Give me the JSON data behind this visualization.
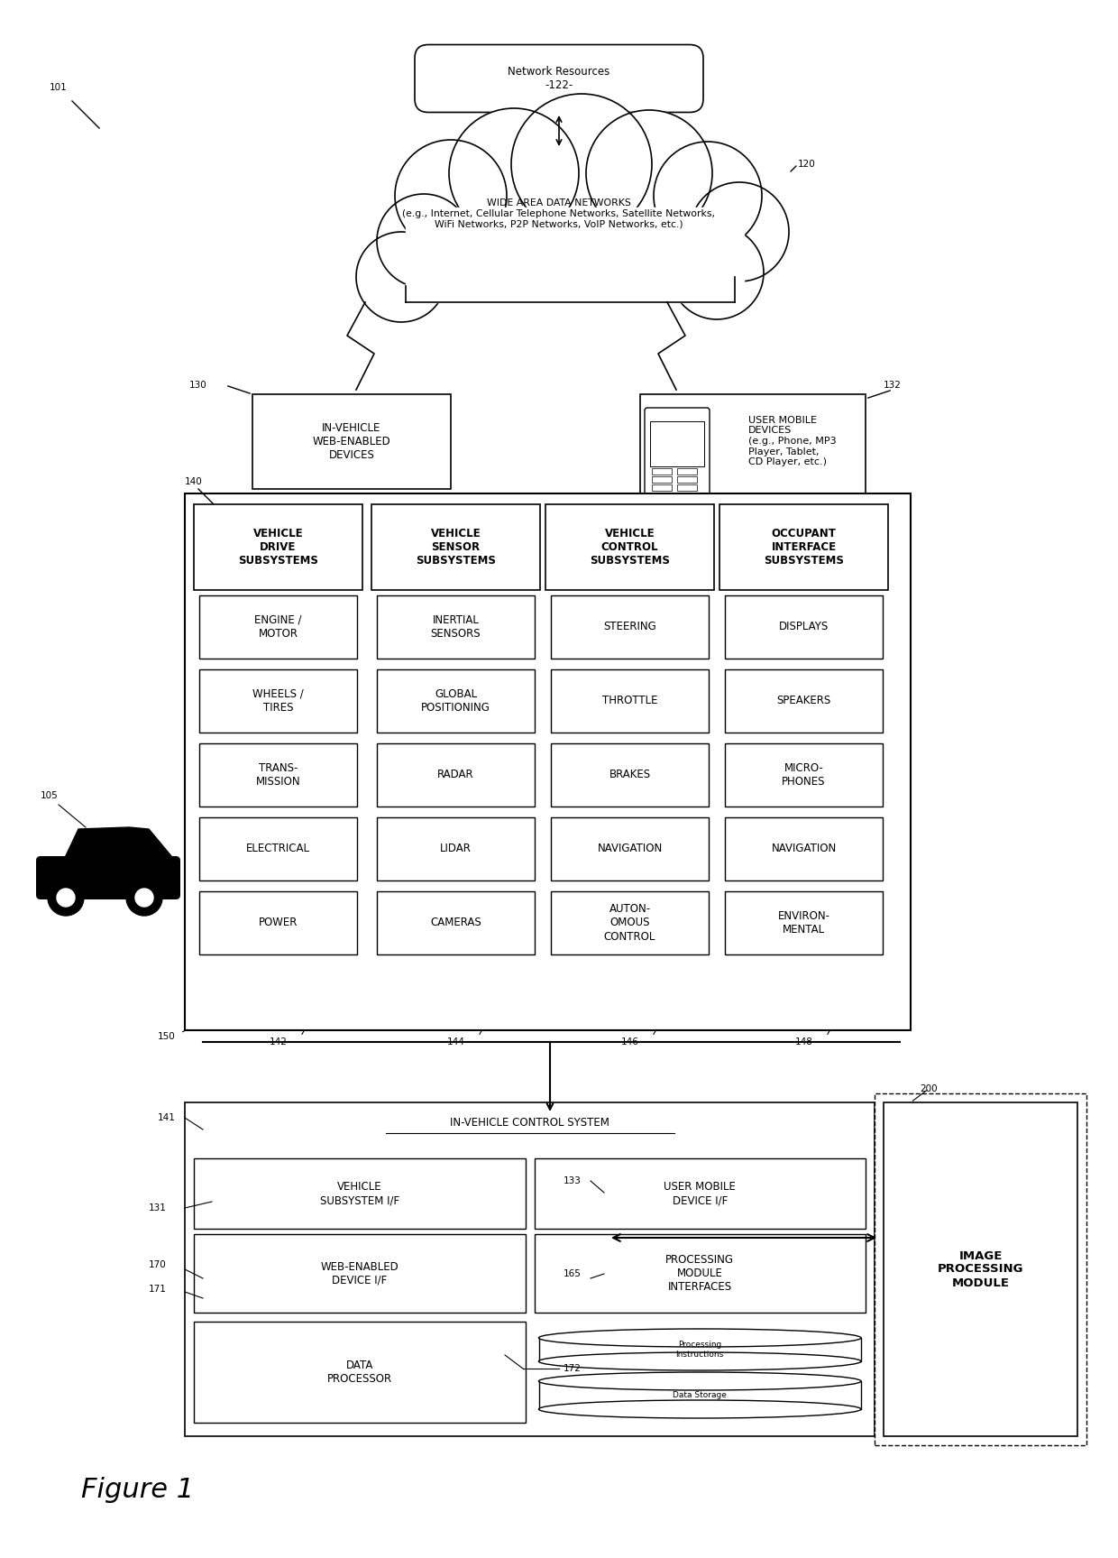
{
  "bg_color": "#ffffff",
  "line_color": "#000000",
  "fig_label": "Figure 1",
  "network_resources_text": "Network Resources\n-122-",
  "wadn_text": "WIDE AREA DATA NETWORKS\n(e.g., Internet, Cellular Telephone Networks, Satellite Networks,\nWiFi Networks, P2P Networks, VoIP Networks, etc.)",
  "label_101": "101",
  "label_120": "120",
  "label_130": "130",
  "label_132": "132",
  "label_140": "140",
  "label_105": "105",
  "label_141": "141",
  "label_131": "131",
  "label_150": "150",
  "label_142": "142",
  "label_144": "144",
  "label_146": "146",
  "label_148": "148",
  "label_133": "133",
  "label_165": "165",
  "label_170": "170",
  "label_171": "171",
  "label_172": "172",
  "label_200": "200",
  "invehicle_web_text": "IN-VEHICLE\nWEB-ENABLED\nDEVICES",
  "user_mobile_text": "USER MOBILE\nDEVICES\n(e.g., Phone, MP3\nPlayer, Tablet,\nCD Player, etc.)",
  "col1_header": "VEHICLE\nDRIVE\nSUBSYSTEMS",
  "col2_header": "VEHICLE\nSENSOR\nSUBSYSTEMS",
  "col3_header": "VEHICLE\nCONTROL\nSUBSYSTEMS",
  "col4_header": "OCCUPANT\nINTERFACE\nSUBSYSTEMS",
  "col1_items": [
    "ENGINE /\nMOTOR",
    "WHEELS /\nTIRES",
    "TRANS-\nMISSION",
    "ELECTRICAL",
    "POWER"
  ],
  "col2_items": [
    "INERTIAL\nSENSORS",
    "GLOBAL\nPOSITIONING",
    "RADAR",
    "LIDAR",
    "CAMERAS"
  ],
  "col3_items": [
    "STEERING",
    "THROTTLE",
    "BRAKES",
    "NAVIGATION",
    "AUTON-\nOMOUS\nCONTROL"
  ],
  "col4_items": [
    "DISPLAYS",
    "SPEAKERS",
    "MICRO-\nPHONES",
    "NAVIGATION",
    "ENVIRON-\nMENTAL"
  ],
  "invehicle_control_text": "IN-VEHICLE CONTROL SYSTEM",
  "vehicle_subsystem_if": "VEHICLE\nSUBSYSTEM I/F",
  "user_mobile_device_if": "USER MOBILE\nDEVICE I/F",
  "web_enabled_device_if": "WEB-ENABLED\nDEVICE I/F",
  "processing_module_if": "PROCESSING\nMODULE\nINTERFACES",
  "data_processor": "DATA\nPROCESSOR",
  "processing_instructions": "Processing\nInstructions",
  "data_storage": "Data Storage",
  "image_processing_module": "IMAGE\nPROCESSING\nMODULE"
}
